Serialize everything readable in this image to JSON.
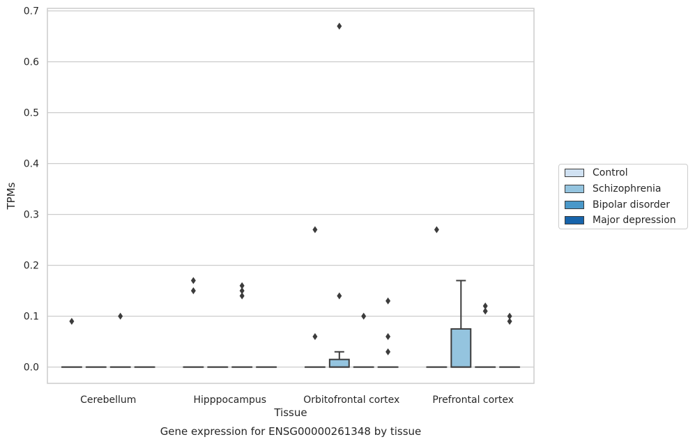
{
  "chart_data": {
    "type": "box",
    "caption": "Gene expression for ENSG00000261348 by tissue",
    "xlabel": "Tissue",
    "ylabel": "TPMs",
    "ylim": [
      -0.032,
      0.705
    ],
    "yticks": [
      0.0,
      0.1,
      0.2,
      0.3,
      0.4,
      0.5,
      0.6,
      0.7
    ],
    "ytick_labels": [
      "0.0",
      "0.1",
      "0.2",
      "0.3",
      "0.4",
      "0.5",
      "0.6",
      "0.7"
    ],
    "grid": "horizontal",
    "legend_position": "right, outside",
    "categories": [
      "Cerebellum",
      "Hipppocampus",
      "Orbitofrontal cortex",
      "Prefrontal cortex"
    ],
    "series": [
      {
        "name": "Control",
        "color": "#d0e1f2",
        "boxes": [
          {
            "q1": 0,
            "median": 0,
            "q3": 0,
            "whisker_low": 0,
            "whisker_high": 0,
            "outliers": [
              0.09
            ]
          },
          {
            "q1": 0,
            "median": 0,
            "q3": 0,
            "whisker_low": 0,
            "whisker_high": 0,
            "outliers": [
              0.15,
              0.17
            ]
          },
          {
            "q1": 0,
            "median": 0,
            "q3": 0,
            "whisker_low": 0,
            "whisker_high": 0,
            "outliers": [
              0.06,
              0.27
            ]
          },
          {
            "q1": 0,
            "median": 0,
            "q3": 0,
            "whisker_low": 0,
            "whisker_high": 0,
            "outliers": [
              0.27
            ]
          }
        ]
      },
      {
        "name": "Schizophrenia",
        "color": "#94c4df",
        "boxes": [
          {
            "q1": 0,
            "median": 0,
            "q3": 0,
            "whisker_low": 0,
            "whisker_high": 0,
            "outliers": []
          },
          {
            "q1": 0,
            "median": 0,
            "q3": 0,
            "whisker_low": 0,
            "whisker_high": 0,
            "outliers": []
          },
          {
            "q1": 0,
            "median": 0,
            "q3": 0.015,
            "whisker_low": 0,
            "whisker_high": 0.03,
            "outliers": [
              0.14,
              0.67
            ]
          },
          {
            "q1": 0,
            "median": 0,
            "q3": 0.075,
            "whisker_low": 0,
            "whisker_high": 0.17,
            "outliers": []
          }
        ]
      },
      {
        "name": "Bipolar disorder",
        "color": "#4a98c9",
        "boxes": [
          {
            "q1": 0,
            "median": 0,
            "q3": 0,
            "whisker_low": 0,
            "whisker_high": 0,
            "outliers": [
              0.1
            ]
          },
          {
            "q1": 0,
            "median": 0,
            "q3": 0,
            "whisker_low": 0,
            "whisker_high": 0,
            "outliers": [
              0.14,
              0.15,
              0.16
            ]
          },
          {
            "q1": 0,
            "median": 0,
            "q3": 0,
            "whisker_low": 0,
            "whisker_high": 0,
            "outliers": [
              0.1
            ]
          },
          {
            "q1": 0,
            "median": 0,
            "q3": 0,
            "whisker_low": 0,
            "whisker_high": 0,
            "outliers": [
              0.11,
              0.12
            ]
          }
        ]
      },
      {
        "name": "Major depression",
        "color": "#1764ab",
        "boxes": [
          {
            "q1": 0,
            "median": 0,
            "q3": 0,
            "whisker_low": 0,
            "whisker_high": 0,
            "outliers": []
          },
          {
            "q1": 0,
            "median": 0,
            "q3": 0,
            "whisker_low": 0,
            "whisker_high": 0,
            "outliers": []
          },
          {
            "q1": 0,
            "median": 0,
            "q3": 0,
            "whisker_low": 0,
            "whisker_high": 0,
            "outliers": [
              0.03,
              0.06,
              0.13
            ]
          },
          {
            "q1": 0,
            "median": 0,
            "q3": 0,
            "whisker_low": 0,
            "whisker_high": 0,
            "outliers": [
              0.09,
              0.1
            ]
          }
        ]
      }
    ]
  }
}
